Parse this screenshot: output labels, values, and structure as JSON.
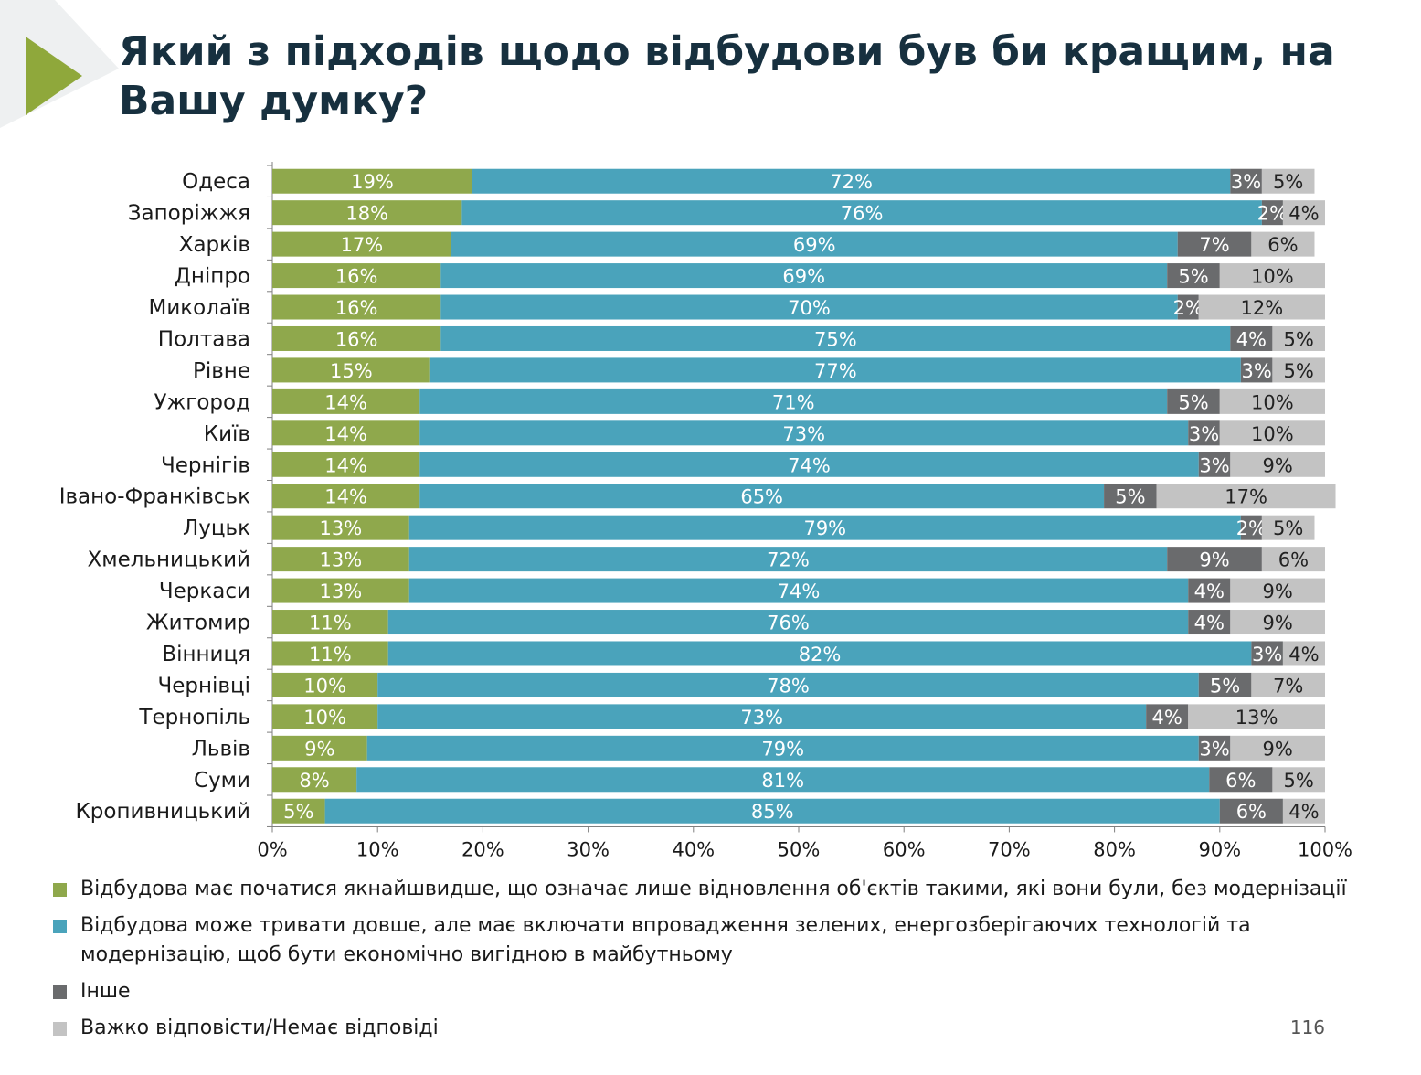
{
  "title": "Який з підходів щодо відбудови був би кращим, на Вашу думку?",
  "page_number": "116",
  "colors": {
    "accent_arrow": "#8fa83b",
    "series": [
      "#8fa84c",
      "#4aa3bb",
      "#6a6b6d",
      "#c3c3c3"
    ],
    "label_on_dark": "#ffffff",
    "label_on_light": "#222222"
  },
  "legend": [
    "Відбудова має початися якнайшвидше, що означає лише відновлення об'єктів такими, які вони були, без модернізації",
    "Відбудова може тривати довше, але має включати впровадження зелених, енергозберігаючих технологій та модернізацію, щоб бути економічно вигідною в майбутньому",
    "Інше",
    "Важко відповісти/Немає відповіді"
  ],
  "chart_data": {
    "type": "bar",
    "orientation": "horizontal",
    "stacked": true,
    "percent": true,
    "xlim": [
      0,
      100
    ],
    "x_ticks": [
      "0%",
      "10%",
      "20%",
      "30%",
      "40%",
      "50%",
      "60%",
      "70%",
      "80%",
      "90%",
      "100%"
    ],
    "legend_position": "bottom",
    "grid": false,
    "categories": [
      "Одеса",
      "Запоріжжя",
      "Харків",
      "Дніпро",
      "Миколаїв",
      "Полтава",
      "Рівне",
      "Ужгород",
      "Київ",
      "Чернігів",
      "Івано-Франківськ",
      "Луцьк",
      "Хмельницький",
      "Черкаси",
      "Житомир",
      "Вінниця",
      "Чернівці",
      "Тернопіль",
      "Львів",
      "Суми",
      "Кропивницький"
    ],
    "series": [
      {
        "name": "Відбудова має початися якнайшвидше, що означає лише відновлення об'єктів такими, які вони були, без модернізації",
        "values": [
          19,
          18,
          17,
          16,
          16,
          16,
          15,
          14,
          14,
          14,
          14,
          13,
          13,
          13,
          11,
          11,
          10,
          10,
          9,
          8,
          5
        ]
      },
      {
        "name": "Відбудова може тривати довше, але має включати впровадження зелених, енергозберігаючих технологій та модернізацію, щоб бути економічно вигідною в майбутньому",
        "values": [
          72,
          76,
          69,
          69,
          70,
          75,
          77,
          71,
          73,
          74,
          65,
          79,
          72,
          74,
          76,
          82,
          78,
          73,
          79,
          81,
          85
        ]
      },
      {
        "name": "Інше",
        "values": [
          3,
          2,
          7,
          5,
          2,
          4,
          3,
          5,
          3,
          3,
          5,
          2,
          9,
          4,
          4,
          3,
          5,
          4,
          3,
          6,
          6
        ]
      },
      {
        "name": "Важко відповісти/Немає відповіді",
        "values": [
          5,
          4,
          6,
          10,
          12,
          5,
          5,
          10,
          10,
          9,
          17,
          5,
          6,
          9,
          9,
          4,
          7,
          13,
          9,
          5,
          4
        ]
      }
    ]
  }
}
